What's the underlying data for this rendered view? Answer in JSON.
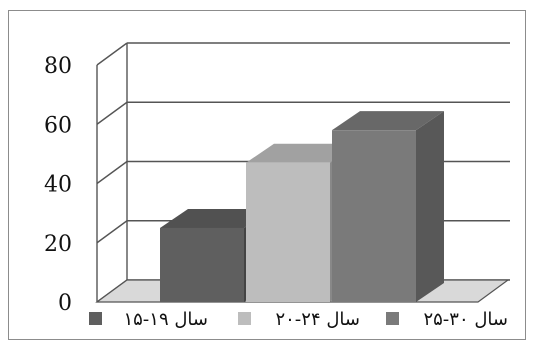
{
  "chart_data": {
    "type": "bar",
    "style": "3d-column",
    "title": "",
    "xlabel": "",
    "ylabel": "",
    "ylim": [
      0,
      80
    ],
    "yticks": [
      0,
      20,
      40,
      60,
      80
    ],
    "grid": true,
    "legend_position": "bottom",
    "categories": [
      "۱۵-۱۹ سال",
      "۲۰-۲۴ سال",
      "۲۵-۳۰ سال"
    ],
    "values": [
      25,
      47,
      58
    ],
    "colors": [
      "#5f5f5f",
      "#bdbdbd",
      "#7a7a7a"
    ],
    "legend": [
      {
        "label": "۱۵-۱۹ سال",
        "color": "#5f5f5f"
      },
      {
        "label": "۲۰-۲۴ سال",
        "color": "#bdbdbd"
      },
      {
        "label": "۲۵-۳۰ سال",
        "color": "#7a7a7a"
      }
    ]
  }
}
